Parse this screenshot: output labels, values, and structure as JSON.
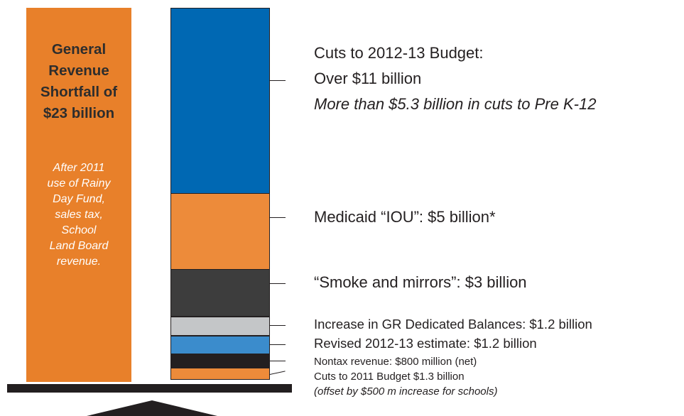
{
  "left_panel": {
    "title_lines": [
      "General",
      "Revenue",
      "Shortfall of",
      "$23 billion"
    ],
    "note_lines": [
      "After 2011",
      "use of Rainy",
      "Day Fund,",
      "sales tax,",
      "School",
      "Land Board",
      "revenue."
    ]
  },
  "segments": [
    {
      "name": "cuts-2012-13",
      "color": "#0068b3"
    },
    {
      "name": "medicaid-iou",
      "color": "#ed8b3a"
    },
    {
      "name": "smoke-mirrors",
      "color": "#3d3d3d"
    },
    {
      "name": "gr-dedicated",
      "color": "#c4c6c8"
    },
    {
      "name": "revised-estimate",
      "color": "#3b8ccc"
    },
    {
      "name": "nontax-revenue",
      "color": "#231f20"
    },
    {
      "name": "cuts-2011",
      "color": "#ed8b3a"
    }
  ],
  "labels": {
    "cuts_2012_13": "Cuts to 2012-13 Budget:",
    "cuts_2012_13_amount": "Over $11 billion",
    "cuts_2012_13_note": "More than $5.3 billion in cuts to Pre K-12",
    "medicaid": "Medicaid “IOU”: $5 billion*",
    "smoke": "“Smoke and mirrors”: $3 billion",
    "gr_dedicated": "Increase in GR Dedicated Balances: $1.2 billion",
    "revised": "Revised 2012-13 estimate: $1.2 billion",
    "nontax": "Nontax revenue: $800 million (net)",
    "cuts_2011": "Cuts to 2011 Budget $1.3 billion",
    "cuts_2011_note": "(offset by $500 m increase for schools)"
  }
}
